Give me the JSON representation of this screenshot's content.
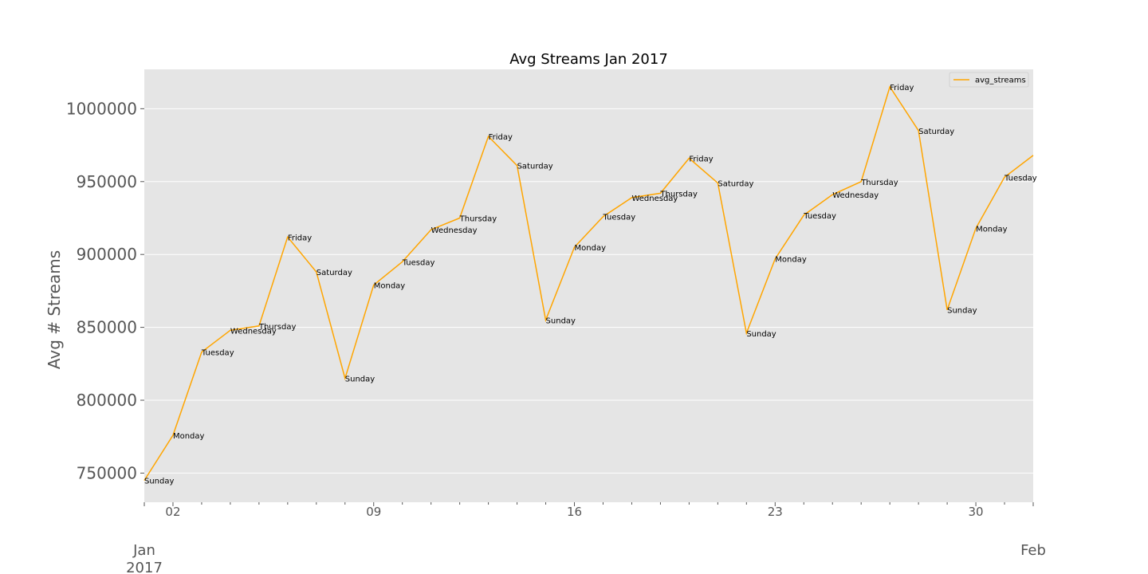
{
  "chart_data": {
    "type": "line",
    "title": "Avg Streams Jan 2017",
    "xlabel": "",
    "ylabel": "Avg # Streams",
    "ylim": [
      730000,
      1027000
    ],
    "yticks": [
      750000,
      800000,
      850000,
      900000,
      950000,
      1000000
    ],
    "xlim": [
      "2017-01-01",
      "2017-02-01"
    ],
    "xtick_labels": [
      {
        "date": "2017-01-02",
        "label": "02"
      },
      {
        "date": "2017-01-09",
        "label": "09"
      },
      {
        "date": "2017-01-16",
        "label": "16"
      },
      {
        "date": "2017-01-23",
        "label": "23"
      },
      {
        "date": "2017-01-30",
        "label": "30"
      }
    ],
    "xmajor_labels": [
      {
        "date": "2017-01-01",
        "line1": "Jan",
        "line2": "2017"
      },
      {
        "date": "2017-02-01",
        "line1": "Feb",
        "line2": ""
      }
    ],
    "grid": true,
    "legend": {
      "position": "top-right",
      "entries": [
        "avg_streams"
      ]
    },
    "series": [
      {
        "name": "avg_streams",
        "color": "#ffa500",
        "x": [
          "2017-01-01",
          "2017-01-02",
          "2017-01-03",
          "2017-01-04",
          "2017-01-05",
          "2017-01-06",
          "2017-01-07",
          "2017-01-08",
          "2017-01-09",
          "2017-01-10",
          "2017-01-11",
          "2017-01-12",
          "2017-01-13",
          "2017-01-14",
          "2017-01-15",
          "2017-01-16",
          "2017-01-17",
          "2017-01-18",
          "2017-01-19",
          "2017-01-20",
          "2017-01-21",
          "2017-01-22",
          "2017-01-23",
          "2017-01-24",
          "2017-01-25",
          "2017-01-26",
          "2017-01-27",
          "2017-01-28",
          "2017-01-29",
          "2017-01-30",
          "2017-01-31",
          "2017-02-01"
        ],
        "values": [
          745000,
          776000,
          833000,
          848000,
          851000,
          912000,
          888000,
          815000,
          879000,
          895000,
          917000,
          925000,
          981000,
          961000,
          855000,
          905000,
          926000,
          939000,
          942000,
          966000,
          949000,
          846000,
          897000,
          927000,
          941000,
          950000,
          1015000,
          985000,
          862000,
          918000,
          953000,
          968000
        ],
        "point_labels": [
          "Sunday",
          "Monday",
          "Tuesday",
          "Wednesday",
          "Thursday",
          "Friday",
          "Saturday",
          "Sunday",
          "Monday",
          "Tuesday",
          "Wednesday",
          "Thursday",
          "Friday",
          "Saturday",
          "Sunday",
          "Monday",
          "Tuesday",
          "Wednesday",
          "Thursday",
          "Friday",
          "Saturday",
          "Sunday",
          "Monday",
          "Tuesday",
          "Wednesday",
          "Thursday",
          "Friday",
          "Saturday",
          "Sunday",
          "Monday",
          "Tuesday",
          ""
        ]
      }
    ]
  }
}
